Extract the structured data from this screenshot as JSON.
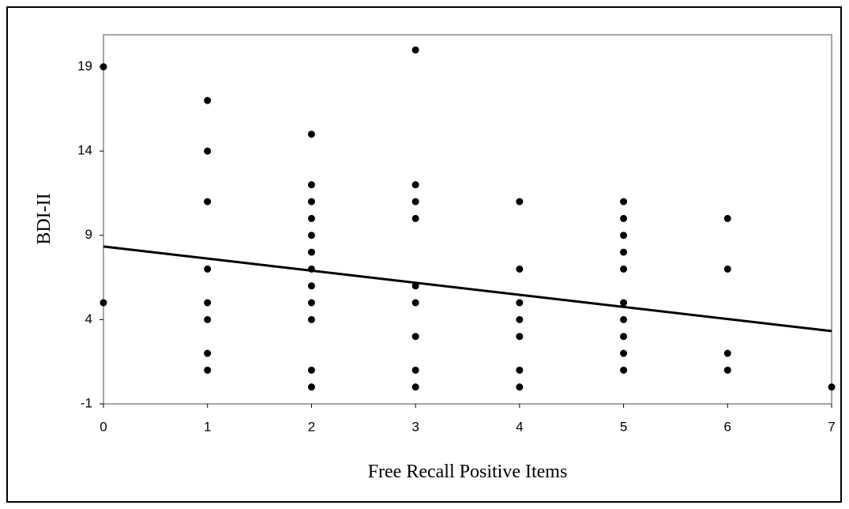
{
  "chart_data": {
    "type": "scatter",
    "xlabel": "Free Recall Positive Items",
    "ylabel": "BDI-II",
    "series": [
      {
        "color": "#000000",
        "x": [
          0,
          0,
          1,
          1,
          1,
          1,
          1,
          1,
          1,
          1,
          2,
          2,
          2,
          2,
          2,
          2,
          2,
          2,
          2,
          2,
          2,
          2,
          3,
          3,
          3,
          3,
          3,
          3,
          3,
          3,
          3,
          4,
          4,
          4,
          4,
          4,
          4,
          4,
          5,
          5,
          5,
          5,
          5,
          5,
          5,
          5,
          5,
          5,
          6,
          6,
          6,
          6,
          7
        ],
        "values": [
          19,
          5,
          17,
          14,
          11,
          7,
          5,
          4,
          2,
          1,
          15,
          12,
          11,
          10,
          9,
          8,
          7,
          6,
          5,
          4,
          1,
          0,
          20,
          12,
          11,
          10,
          6,
          5,
          3,
          1,
          0,
          11,
          7,
          5,
          4,
          3,
          1,
          0,
          11,
          10,
          9,
          8,
          7,
          5,
          4,
          3,
          2,
          1,
          10,
          7,
          2,
          1,
          0
        ]
      }
    ],
    "trendline": {
      "color": "#000000",
      "x": [
        0,
        7
      ],
      "values": [
        8.34,
        3.32
      ]
    },
    "xlim": [
      0,
      7
    ],
    "xticks": [
      0,
      1,
      2,
      3,
      4,
      5,
      6,
      7
    ],
    "ylim": [
      -1,
      20.9
    ],
    "yticks": [
      -1,
      4,
      9,
      14,
      19
    ],
    "grid": false
  }
}
